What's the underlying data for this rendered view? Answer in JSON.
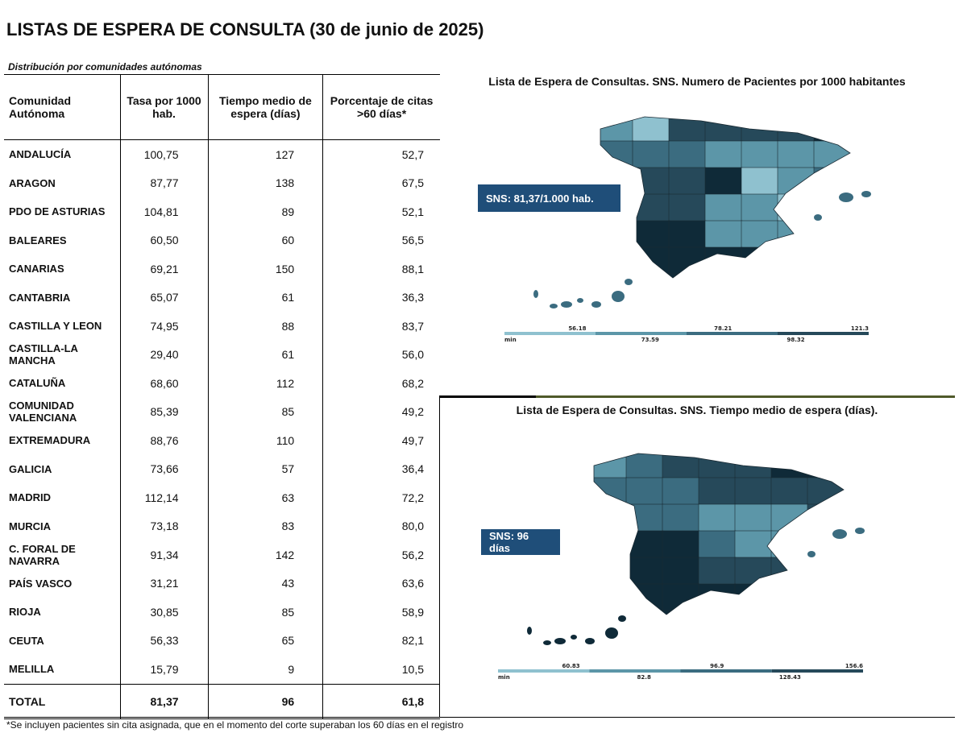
{
  "title": "LISTAS DE ESPERA DE CONSULTA (30 de junio de 2025)",
  "subtitle": "Distribución por comunidades autónomas",
  "chart_data": [
    {
      "type": "table",
      "columns": [
        "Comunidad Autónoma",
        "Tasa por 1000 hab.",
        "Tiempo medio de espera (días)",
        "Porcentaje de citas >60 días*"
      ],
      "rows": [
        [
          "ANDALUCÍA",
          "100,75",
          "127",
          "52,7"
        ],
        [
          "ARAGON",
          "87,77",
          "138",
          "67,5"
        ],
        [
          "PDO DE ASTURIAS",
          "104,81",
          "89",
          "52,1"
        ],
        [
          "BALEARES",
          "60,50",
          "60",
          "56,5"
        ],
        [
          "CANARIAS",
          "69,21",
          "150",
          "88,1"
        ],
        [
          "CANTABRIA",
          "65,07",
          "61",
          "36,3"
        ],
        [
          "CASTILLA Y LEON",
          "74,95",
          "88",
          "83,7"
        ],
        [
          "CASTILLA-LA MANCHA",
          "29,40",
          "61",
          "56,0"
        ],
        [
          "CATALUÑA",
          "68,60",
          "112",
          "68,2"
        ],
        [
          "COMUNIDAD VALENCIANA",
          "85,39",
          "85",
          "49,2"
        ],
        [
          "EXTREMADURA",
          "88,76",
          "110",
          "49,7"
        ],
        [
          "GALICIA",
          "73,66",
          "57",
          "36,4"
        ],
        [
          "MADRID",
          "112,14",
          "63",
          "72,2"
        ],
        [
          "MURCIA",
          "73,18",
          "83",
          "80,0"
        ],
        [
          "C. FORAL DE NAVARRA",
          "91,34",
          "142",
          "56,2"
        ],
        [
          "PAÍS VASCO",
          "31,21",
          "43",
          "63,6"
        ],
        [
          "RIOJA",
          "30,85",
          "85",
          "58,9"
        ],
        [
          "CEUTA",
          "56,33",
          "65",
          "82,1"
        ],
        [
          "MELILLA",
          "15,79",
          "9",
          "10,5"
        ]
      ],
      "total": [
        "TOTAL",
        "81,37",
        "96",
        "61,8"
      ]
    },
    {
      "type": "heatmap",
      "title": "Lista de Espera de Consultas. SNS. Numero de Pacientes por 1000 habitantes",
      "annotation": "SNS: 81,37/1.000 hab.",
      "legend_ticks_top": [
        "56.18",
        "78.21",
        "121.3"
      ],
      "legend_ticks_bottom": [
        "min",
        "73.59",
        "98.32"
      ],
      "colors": [
        "#8fc1cf",
        "#5c96a8",
        "#3b6c80",
        "#26495a",
        "#0f2a38"
      ]
    },
    {
      "type": "heatmap",
      "title": "Lista de Espera de Consultas. SNS. Tiempo medio de espera (días).",
      "annotation": "SNS: 96 días",
      "legend_ticks_top": [
        "60.83",
        "96.9",
        "156.6"
      ],
      "legend_ticks_bottom": [
        "min",
        "82.8",
        "128.43"
      ],
      "colors": [
        "#8fc1cf",
        "#5c96a8",
        "#3b6c80",
        "#26495a",
        "#0f2a38"
      ]
    }
  ],
  "footnote": "*Se incluyen pacientes sin cita asignada, que en el momento del corte superaban los 60 días en el registro"
}
